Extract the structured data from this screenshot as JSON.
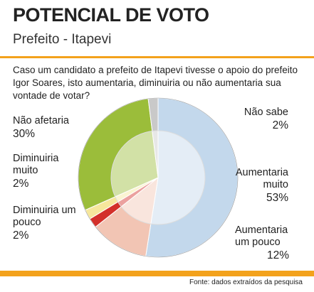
{
  "chart_data": {
    "type": "pie",
    "title": "POTENCIAL DE VOTO",
    "subtitle": "Prefeito - Itapevi",
    "question": "Caso um candidato a prefeito de Itapevi tivesse o apoio do prefeito Igor Soares, isto aumentaria, diminuiria ou não aumentaria sua vontade de votar?",
    "source": "Fonte: dados extraídos da pesquisa",
    "categories": [
      "Aumentaria muito",
      "Aumentaria um pouco",
      "Diminuiria um pouco",
      "Diminuiria muito",
      "Não afetaria",
      "Não sabe"
    ],
    "values": [
      53,
      12,
      2,
      2,
      30,
      2
    ],
    "value_labels": [
      "53%",
      "12%",
      "2%",
      "2%",
      "30%",
      "2%"
    ],
    "colors": [
      "#c3d8ec",
      "#f2c5b4",
      "#d3302a",
      "#f6e79c",
      "#9bbd3a",
      "#c9c9c9"
    ]
  }
}
